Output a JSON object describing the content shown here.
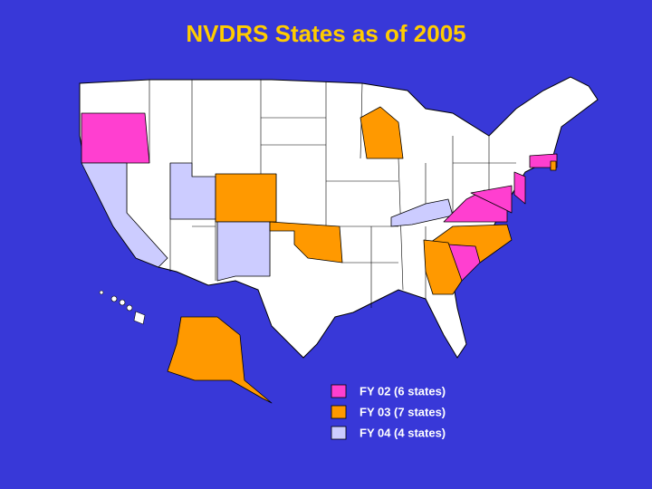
{
  "title": "NVDRS States as of 2005",
  "legend": [
    {
      "label": "FY 02 (6 states)",
      "color": "#ff3fd0"
    },
    {
      "label": "FY 03 (7 states)",
      "color": "#ff9900"
    },
    {
      "label": "FY 04 (4 states)",
      "color": "#ccccff"
    }
  ]
}
